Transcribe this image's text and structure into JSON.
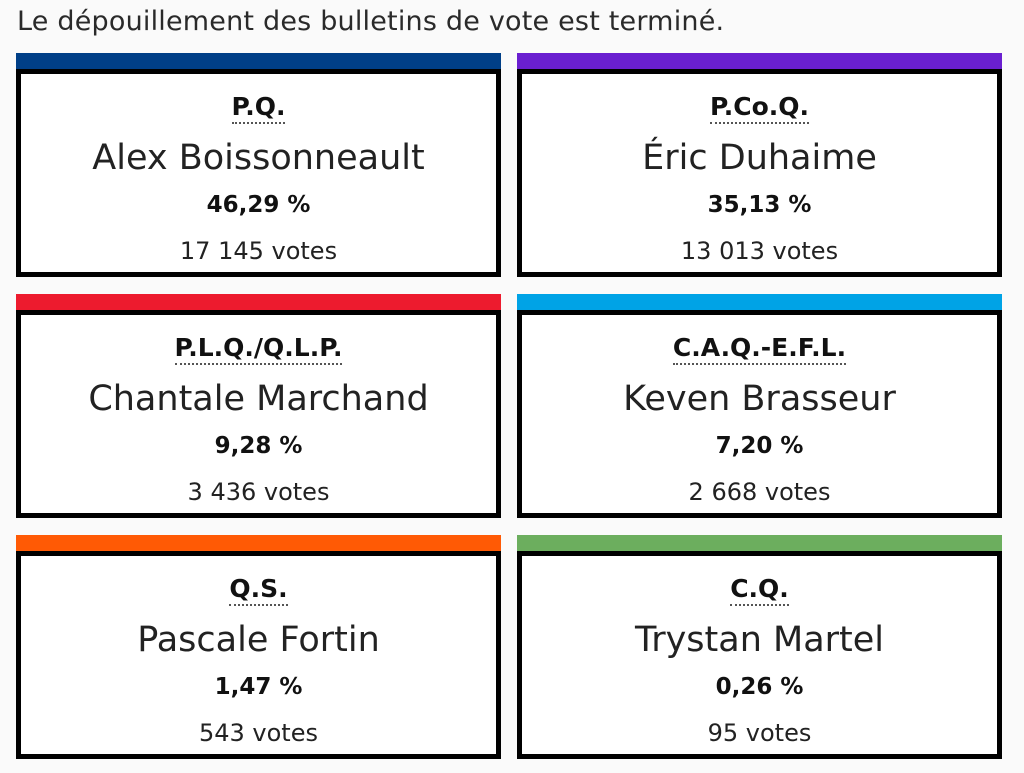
{
  "status_message": "Le dépouillement des bulletins de vote est terminé.",
  "results": [
    {
      "party": "P.Q.",
      "candidate": "Alex Boissonneault",
      "percent": "46,29 %",
      "votes": "17 145 votes",
      "color": "#003f87"
    },
    {
      "party": "P.Co.Q.",
      "candidate": "Éric Duhaime",
      "percent": "35,13 %",
      "votes": "13 013 votes",
      "color": "#6a1fd0"
    },
    {
      "party": "P.L.Q./Q.L.P.",
      "candidate": "Chantale Marchand",
      "percent": "9,28 %",
      "votes": "3 436 votes",
      "color": "#ed1b2e"
    },
    {
      "party": "C.A.Q.-E.F.L.",
      "candidate": "Keven Brasseur",
      "percent": "7,20 %",
      "votes": "2 668 votes",
      "color": "#00a3e6"
    },
    {
      "party": "Q.S.",
      "candidate": "Pascale Fortin",
      "percent": "1,47 %",
      "votes": "543 votes",
      "color": "#ff5a05"
    },
    {
      "party": "C.Q.",
      "candidate": "Trystan Martel",
      "percent": "0,26 %",
      "votes": "95 votes",
      "color": "#6cae5e"
    }
  ]
}
